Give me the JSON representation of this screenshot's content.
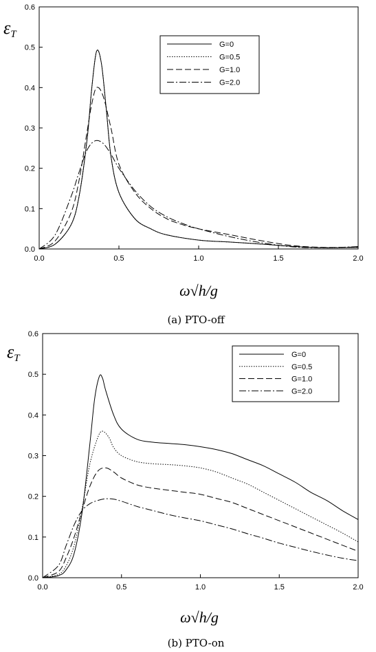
{
  "chart_data": [
    {
      "type": "line",
      "caption": "(a) PTO-off",
      "ylabel": "ε",
      "ylabel_sub": "T",
      "xlabel": "ω√h/g",
      "xlim": [
        0.0,
        2.0
      ],
      "ylim": [
        0.0,
        0.6
      ],
      "x_ticks": [
        "0.0",
        "0.5",
        "1.0",
        "1.5",
        "2.0"
      ],
      "y_ticks": [
        "0.0",
        "0.1",
        "0.2",
        "0.3",
        "0.4",
        "0.5",
        "0.6"
      ],
      "legend_position": "top-right",
      "series": [
        {
          "name": "G=0",
          "dash": "solid",
          "x": [
            0.0,
            0.1,
            0.2,
            0.25,
            0.3,
            0.33,
            0.36,
            0.39,
            0.42,
            0.45,
            0.5,
            0.6,
            0.7,
            0.8,
            1.0,
            1.2,
            1.4,
            1.6,
            1.8,
            2.0
          ],
          "y": [
            0.0,
            0.012,
            0.06,
            0.13,
            0.27,
            0.4,
            0.49,
            0.46,
            0.35,
            0.23,
            0.14,
            0.075,
            0.05,
            0.035,
            0.022,
            0.017,
            0.012,
            0.006,
            0.003,
            0.004
          ]
        },
        {
          "name": "G=0.5",
          "dash": "dotted",
          "x": [
            0.0,
            0.1,
            0.2,
            0.25,
            0.3,
            0.33,
            0.36,
            0.39,
            0.42,
            0.45,
            0.5,
            0.6,
            0.7,
            0.8,
            1.0,
            1.2,
            1.4,
            1.6,
            1.8,
            2.0
          ],
          "y": [
            0.0,
            0.012,
            0.06,
            0.13,
            0.27,
            0.4,
            0.49,
            0.46,
            0.35,
            0.23,
            0.14,
            0.075,
            0.05,
            0.035,
            0.022,
            0.017,
            0.012,
            0.006,
            0.003,
            0.004
          ]
        },
        {
          "name": "G=1.0",
          "dash": "dashed",
          "x": [
            0.0,
            0.1,
            0.2,
            0.25,
            0.3,
            0.33,
            0.36,
            0.4,
            0.45,
            0.5,
            0.6,
            0.7,
            0.8,
            0.9,
            1.0,
            1.2,
            1.4,
            1.6,
            1.8,
            2.0
          ],
          "y": [
            0.0,
            0.02,
            0.09,
            0.17,
            0.29,
            0.36,
            0.4,
            0.38,
            0.3,
            0.21,
            0.14,
            0.1,
            0.075,
            0.06,
            0.05,
            0.035,
            0.02,
            0.008,
            0.004,
            0.005
          ]
        },
        {
          "name": "G=2.0",
          "dash": "dashdot",
          "x": [
            0.0,
            0.1,
            0.2,
            0.25,
            0.3,
            0.35,
            0.4,
            0.45,
            0.5,
            0.6,
            0.7,
            0.8,
            0.9,
            1.0,
            1.2,
            1.4,
            1.6,
            1.8,
            2.0
          ],
          "y": [
            0.0,
            0.035,
            0.13,
            0.19,
            0.245,
            0.268,
            0.262,
            0.235,
            0.2,
            0.145,
            0.105,
            0.08,
            0.063,
            0.05,
            0.03,
            0.015,
            0.005,
            0.003,
            0.006
          ]
        }
      ]
    },
    {
      "type": "line",
      "caption": "(b) PTO-on",
      "ylabel": "ε",
      "ylabel_sub": "T",
      "xlabel": "ω√h/g",
      "xlim": [
        0.0,
        2.0
      ],
      "ylim": [
        0.0,
        0.6
      ],
      "x_ticks": [
        "0.0",
        "0.5",
        "1.0",
        "1.5",
        "2.0"
      ],
      "y_ticks": [
        "0.0",
        "0.1",
        "0.2",
        "0.3",
        "0.4",
        "0.5",
        "0.6"
      ],
      "legend_position": "top-right",
      "series": [
        {
          "name": "G=0",
          "dash": "solid",
          "x": [
            0.0,
            0.1,
            0.15,
            0.2,
            0.25,
            0.3,
            0.33,
            0.36,
            0.38,
            0.4,
            0.45,
            0.5,
            0.6,
            0.7,
            0.8,
            0.9,
            1.0,
            1.1,
            1.2,
            1.3,
            1.4,
            1.5,
            1.6,
            1.7,
            1.8,
            1.9,
            2.0
          ],
          "y": [
            0.0,
            0.005,
            0.02,
            0.06,
            0.16,
            0.33,
            0.44,
            0.495,
            0.49,
            0.46,
            0.4,
            0.365,
            0.34,
            0.333,
            0.33,
            0.327,
            0.322,
            0.315,
            0.305,
            0.29,
            0.275,
            0.255,
            0.235,
            0.21,
            0.19,
            0.165,
            0.143
          ]
        },
        {
          "name": "G=0.5",
          "dash": "dotted",
          "x": [
            0.0,
            0.1,
            0.15,
            0.2,
            0.25,
            0.3,
            0.35,
            0.38,
            0.42,
            0.45,
            0.5,
            0.6,
            0.7,
            0.8,
            0.9,
            1.0,
            1.1,
            1.2,
            1.3,
            1.4,
            1.5,
            1.6,
            1.7,
            1.8,
            1.9,
            2.0
          ],
          "y": [
            0.0,
            0.008,
            0.03,
            0.08,
            0.17,
            0.28,
            0.345,
            0.36,
            0.345,
            0.32,
            0.3,
            0.285,
            0.28,
            0.278,
            0.275,
            0.27,
            0.26,
            0.245,
            0.23,
            0.21,
            0.19,
            0.17,
            0.15,
            0.13,
            0.11,
            0.088
          ]
        },
        {
          "name": "G=1.0",
          "dash": "dashed",
          "x": [
            0.0,
            0.1,
            0.15,
            0.2,
            0.25,
            0.3,
            0.35,
            0.4,
            0.45,
            0.5,
            0.6,
            0.7,
            0.8,
            0.9,
            1.0,
            1.1,
            1.2,
            1.3,
            1.4,
            1.5,
            1.6,
            1.7,
            1.8,
            1.9,
            2.0
          ],
          "y": [
            0.0,
            0.015,
            0.05,
            0.1,
            0.165,
            0.225,
            0.262,
            0.27,
            0.26,
            0.245,
            0.228,
            0.22,
            0.215,
            0.21,
            0.205,
            0.195,
            0.185,
            0.17,
            0.155,
            0.14,
            0.125,
            0.11,
            0.095,
            0.08,
            0.065
          ]
        },
        {
          "name": "G=2.0",
          "dash": "dashdot",
          "x": [
            0.0,
            0.1,
            0.15,
            0.2,
            0.25,
            0.3,
            0.35,
            0.4,
            0.45,
            0.5,
            0.6,
            0.7,
            0.8,
            0.9,
            1.0,
            1.1,
            1.2,
            1.3,
            1.4,
            1.5,
            1.6,
            1.7,
            1.8,
            1.9,
            2.0
          ],
          "y": [
            0.0,
            0.03,
            0.08,
            0.13,
            0.165,
            0.182,
            0.19,
            0.194,
            0.193,
            0.188,
            0.175,
            0.165,
            0.155,
            0.147,
            0.14,
            0.13,
            0.12,
            0.108,
            0.097,
            0.085,
            0.075,
            0.065,
            0.056,
            0.048,
            0.042
          ]
        }
      ]
    }
  ]
}
